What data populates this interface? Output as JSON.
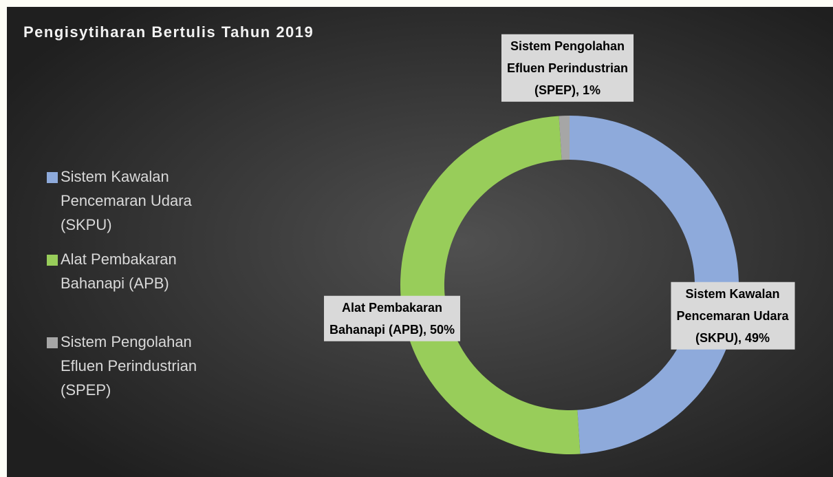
{
  "chart_data": {
    "type": "donut",
    "title": "Pengisytiharan Bertulis Tahun 2019",
    "categories": [
      "Sistem Kawalan Pencemaran Udara (SKPU)",
      "Alat Pembakaran Bahanapi (APB)",
      "Sistem Pengolahan Efluen Perindustrian (SPEP)"
    ],
    "values": [
      49,
      50,
      1
    ],
    "value_labels": [
      "Sistem Kawalan Pencemaran Udara (SKPU), 49%",
      "Alat Pembakaran Bahanapi (APB), 50%",
      "Sistem Pengolahan Efluen Perindustrian (SPEP), 1%"
    ],
    "colors": [
      "#8eaadb",
      "#98cd5a",
      "#a6a6a6"
    ],
    "legend": "left"
  }
}
